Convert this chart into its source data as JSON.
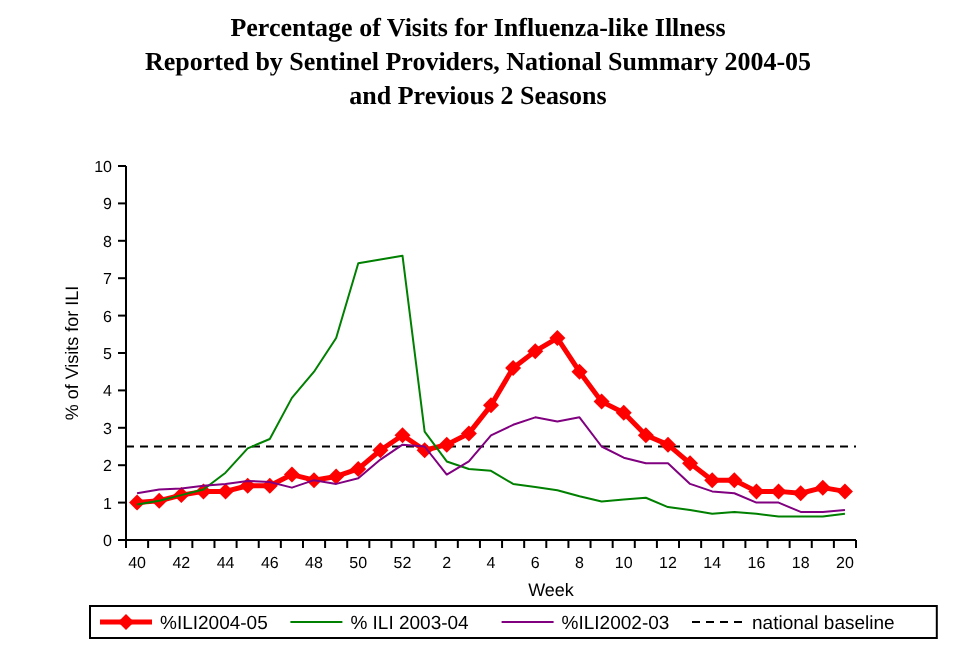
{
  "chart_data": {
    "type": "line",
    "title": "Percentage of Visits for Influenza-like Illness\nReported by Sentinel Providers, National Summary 2004-05\nand Previous 2 Seasons",
    "xlabel": "Week",
    "ylabel": "% of Visits for ILI",
    "categories": [
      "40",
      null,
      "42",
      null,
      "44",
      null,
      "46",
      null,
      "48",
      null,
      "50",
      null,
      "52",
      null,
      "2",
      null,
      "4",
      null,
      "6",
      null,
      "8",
      null,
      "10",
      null,
      "12",
      null,
      "14",
      null,
      "16",
      null,
      "18",
      null,
      "20"
    ],
    "series": [
      {
        "name": "%ILI2004-05",
        "color": "#ff0000",
        "marker": "diamond",
        "values": [
          1.0,
          1.05,
          1.2,
          1.3,
          1.3,
          1.45,
          1.45,
          1.75,
          1.6,
          1.7,
          1.9,
          2.4,
          2.8,
          2.4,
          2.55,
          2.85,
          3.6,
          4.6,
          5.05,
          5.4,
          4.5,
          3.7,
          3.4,
          2.8,
          2.55,
          2.05,
          1.6,
          1.6,
          1.3,
          1.3,
          1.25,
          1.4,
          1.3
        ]
      },
      {
        "name": "% ILI 2003-04",
        "color": "#008000",
        "marker": "none",
        "values": [
          0.95,
          1.05,
          1.2,
          1.35,
          1.8,
          2.45,
          2.7,
          3.8,
          4.5,
          5.4,
          7.4,
          7.5,
          7.6,
          2.9,
          2.1,
          1.9,
          1.85,
          1.5,
          1.42,
          1.33,
          1.17,
          1.03,
          1.08,
          1.13,
          0.88,
          0.8,
          0.7,
          0.75,
          0.7,
          0.63,
          0.63,
          0.63,
          0.7
        ]
      },
      {
        "name": "%ILI2002-03",
        "color": "#800080",
        "marker": "none",
        "values": [
          1.25,
          1.35,
          1.38,
          1.45,
          1.5,
          1.58,
          1.55,
          1.4,
          1.6,
          1.5,
          1.65,
          2.15,
          2.55,
          2.5,
          1.75,
          2.1,
          2.8,
          3.08,
          3.28,
          3.17,
          3.28,
          2.5,
          2.2,
          2.05,
          2.05,
          1.5,
          1.3,
          1.25,
          1.0,
          1.0,
          0.75,
          0.75,
          0.8
        ]
      }
    ],
    "ref_lines": [
      {
        "axis": "y",
        "value": 2.5,
        "label": "national baseline",
        "color": "#000000",
        "line_style": "dashed"
      }
    ],
    "ylim": [
      0,
      10
    ],
    "yticks": [
      0,
      1,
      2,
      3,
      4,
      5,
      6,
      7,
      8,
      9,
      10
    ],
    "grid": false,
    "legend": "bottom"
  }
}
